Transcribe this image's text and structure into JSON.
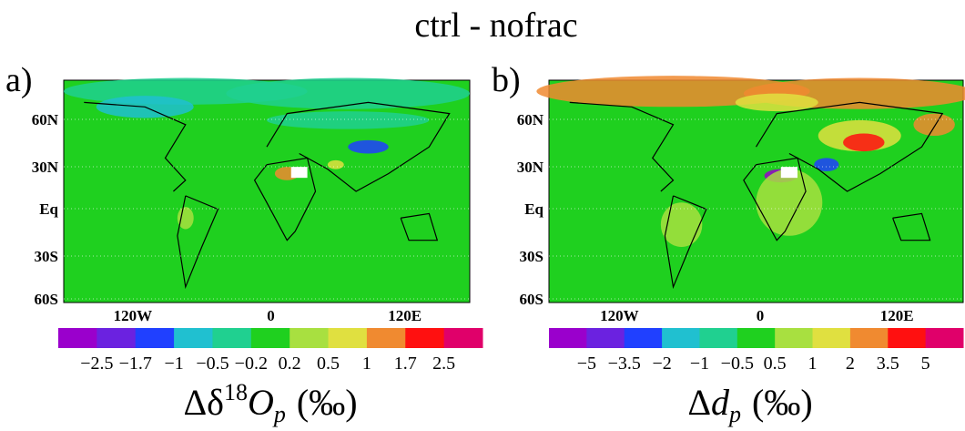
{
  "title": "ctrl - nofrac",
  "panels": [
    {
      "label": "a)",
      "lat_ticks": [
        "60N",
        "30N",
        "Eq",
        "30S",
        "60S"
      ],
      "lon_ticks": [
        "120W",
        "0",
        "120E"
      ],
      "colorbar": {
        "colors": [
          "#9a00cc",
          "#6b22e0",
          "#2040ff",
          "#20c0d0",
          "#20d090",
          "#1fd01f",
          "#a8e040",
          "#e0e040",
          "#f08a30",
          "#ff1010",
          "#e0006a"
        ],
        "labels": [
          "−2.5",
          "−1.7",
          "−1",
          "−0.5",
          "−0.2",
          "0.2",
          "0.5",
          "1",
          "1.7",
          "2.5"
        ]
      },
      "axis_label": {
        "delta": "Δδ",
        "sup": "18",
        "var": "O",
        "sub": "p",
        "unit": "(‰)"
      }
    },
    {
      "label": "b)",
      "lat_ticks": [
        "60N",
        "30N",
        "Eq",
        "30S",
        "60S"
      ],
      "lon_ticks": [
        "120W",
        "0",
        "120E"
      ],
      "colorbar": {
        "colors": [
          "#9a00cc",
          "#6b22e0",
          "#2040ff",
          "#20c0d0",
          "#20d090",
          "#1fd01f",
          "#a8e040",
          "#e0e040",
          "#f08a30",
          "#ff1010",
          "#e0006a"
        ],
        "labels": [
          "−5",
          "−3.5",
          "−2",
          "−1",
          "−0.5",
          "0.5",
          "1",
          "2",
          "3.5",
          "5"
        ]
      },
      "axis_label": {
        "delta": "Δ",
        "sup": "",
        "var": "d",
        "sub": "p",
        "unit": "(‰)"
      }
    }
  ]
}
